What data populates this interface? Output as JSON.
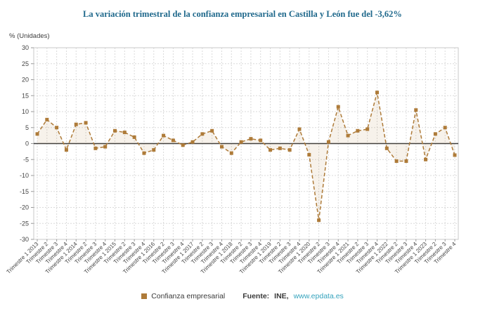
{
  "title": "La variación trimestral de la confianza empresarial en Castilla y León fue del -3,62%",
  "y_axis_unit_label": "% (Unidades)",
  "legend": {
    "series_label": "Confianza empresarial"
  },
  "source": {
    "prefix": "Fuente:",
    "name": "INE,",
    "link": "www.epdata.es"
  },
  "colors": {
    "series": "#ae7b39",
    "area_fill": "rgba(174,123,57,0.10)",
    "grid": "#dadada",
    "axis_text": "#444444",
    "zero_line": "#3d3d3d",
    "plot_border": "#c9c9c9",
    "tick": "#9a9a9a",
    "title": "#20698c",
    "link": "#35a3bd"
  },
  "chart_data": {
    "type": "line",
    "title": "La variación trimestral de la confianza empresarial en Castilla y León fue del -3,62%",
    "xlabel": "",
    "ylabel": "% (Unidades)",
    "ylim": [
      -30,
      30
    ],
    "ytick_step": 5,
    "grid": true,
    "legend_position": "bottom",
    "line_style": "dashed",
    "marker": "square",
    "series_name": "Confianza empresarial",
    "categories": [
      "Trimestre 1 2013",
      "Trimestre 2",
      "Trimestre 3",
      "Trimestre 4",
      "Trimestre 1 2014",
      "Trimestre 2",
      "Trimestre 3",
      "Trimestre 4",
      "Trimestre 1 2015",
      "Trimestre 2",
      "Trimestre 3",
      "Trimestre 4",
      "Trimestre 1 2016",
      "Trimestre 2",
      "Trimestre 3",
      "Trimestre 4",
      "Trimestre 1 2017",
      "Trimestre 2",
      "Trimestre 3",
      "Trimestre 4",
      "Trimestre 1 2018",
      "Trimestre 2",
      "Trimestre 3",
      "Trimestre 4",
      "Trimestre 1 2019",
      "Trimestre 2",
      "Trimestre 3",
      "Trimestre 4",
      "Trimestre 1 2020",
      "Trimestre 2",
      "Trimestre 3",
      "Trimestre 4",
      "Trimestre 1 2021",
      "Trimestre 2",
      "Trimestre 3",
      "Trimestre 4",
      "Trimestre 1 2022",
      "Trimestre 2",
      "Trimestre 3",
      "Trimestre 4",
      "Trimestre 1 2023",
      "Trimestre 2",
      "Trimestre 3",
      "Trimestre 4"
    ],
    "values": [
      3,
      7.5,
      5,
      -2,
      6,
      6.5,
      -1.5,
      -1,
      4,
      3.5,
      2,
      -3,
      -2,
      2.5,
      1,
      -0.5,
      0.5,
      3,
      4,
      -1,
      -3,
      0.5,
      1.5,
      1,
      -2,
      -1.5,
      -2,
      4.5,
      -3.5,
      -24,
      0.5,
      11.5,
      2.5,
      4,
      4.5,
      16,
      -1.5,
      -5.5,
      -5.5,
      10.5,
      -5,
      3,
      5,
      -3.62
    ]
  }
}
